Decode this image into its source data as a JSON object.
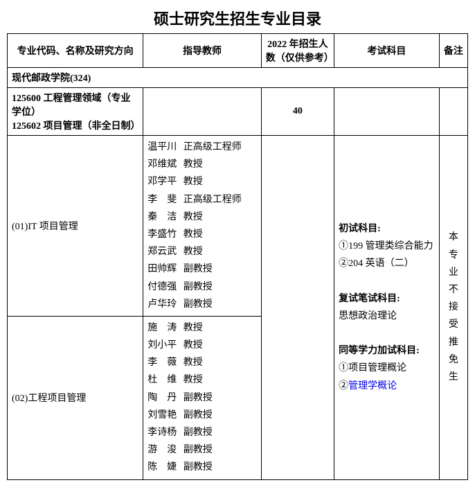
{
  "title": "硕士研究生招生专业目录",
  "headers": {
    "major": "专业代码、名称及研究方向",
    "teacher": "指导教师",
    "quota": "2022 年招生人数（仅供参考）",
    "subject": "考试科目",
    "note": "备注"
  },
  "school": "现代邮政学院(324)",
  "program": {
    "line1": "125600 工程管理领域（专业学位）",
    "line2": "125602 项目管理（非全日制）"
  },
  "quota": "40",
  "directions": {
    "d1": {
      "label": "(01)IT 项目管理",
      "teachers": [
        {
          "name": "温平川",
          "title": "正高级工程师"
        },
        {
          "name": "邓维斌",
          "title": "教授"
        },
        {
          "name": "邓学平",
          "title": "教授"
        },
        {
          "name": "李　斐",
          "title": "正高级工程师"
        },
        {
          "name": "秦　洁",
          "title": "教授"
        },
        {
          "name": "李盛竹",
          "title": "教授"
        },
        {
          "name": "郑云武",
          "title": "教授"
        },
        {
          "name": "田帅辉",
          "title": "副教授"
        },
        {
          "name": "付德强",
          "title": "副教授"
        },
        {
          "name": "卢华玲",
          "title": "副教授"
        }
      ]
    },
    "d2": {
      "label": "(02)工程项目管理",
      "teachers": [
        {
          "name": "施　涛",
          "title": "教授"
        },
        {
          "name": "刘小平",
          "title": "教授"
        },
        {
          "name": "李　薇",
          "title": "教授"
        },
        {
          "name": "杜　维",
          "title": "教授"
        },
        {
          "name": "陶　丹",
          "title": "副教授"
        },
        {
          "name": "刘雪艳",
          "title": "副教授"
        },
        {
          "name": "李诗杨",
          "title": "副教授"
        },
        {
          "name": "游　浚",
          "title": "副教授"
        },
        {
          "name": "陈　婕",
          "title": "副教授"
        }
      ]
    }
  },
  "subjects": {
    "prelim_label": "初试科目:",
    "prelim1": "①199 管理类综合能力",
    "prelim2": "②204 英语（二）",
    "written_label": "复试笔试科目:",
    "written1": "思想政治理论",
    "equiv_label": "同等学力加试科目:",
    "equiv1": "①项目管理概论",
    "equiv2_prefix": "②",
    "equiv2_link": "管理学概论"
  },
  "note_chars": [
    "本",
    "专",
    "业",
    "不",
    "接",
    "受",
    "推",
    "免",
    "生"
  ]
}
